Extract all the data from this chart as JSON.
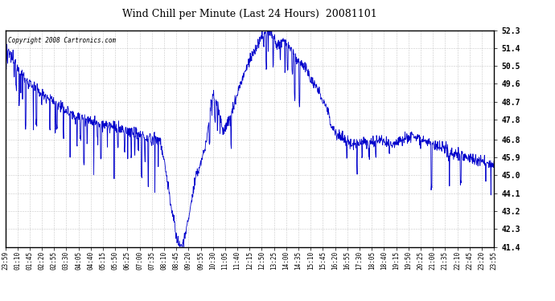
{
  "title": "Wind Chill per Minute (Last 24 Hours)  20081101",
  "copyright": "Copyright 2008 Cartronics.com",
  "line_color": "#0000CC",
  "bg_color": "#ffffff",
  "plot_bg_color": "#ffffff",
  "grid_color": "#bbbbbb",
  "ylim": [
    41.4,
    52.3
  ],
  "yticks": [
    41.4,
    42.3,
    43.2,
    44.1,
    45.0,
    45.9,
    46.8,
    47.8,
    48.7,
    49.6,
    50.5,
    51.4,
    52.3
  ],
  "x_labels": [
    "23:59",
    "01:10",
    "01:45",
    "02:20",
    "02:55",
    "03:30",
    "04:05",
    "04:40",
    "05:15",
    "05:50",
    "06:25",
    "07:00",
    "07:35",
    "08:10",
    "08:45",
    "09:20",
    "09:55",
    "10:30",
    "11:05",
    "11:40",
    "12:15",
    "12:50",
    "13:25",
    "14:00",
    "14:35",
    "15:10",
    "15:45",
    "16:20",
    "16:55",
    "17:30",
    "18:05",
    "18:40",
    "19:15",
    "19:50",
    "20:25",
    "21:00",
    "21:35",
    "22:10",
    "22:45",
    "23:20",
    "23:55"
  ]
}
